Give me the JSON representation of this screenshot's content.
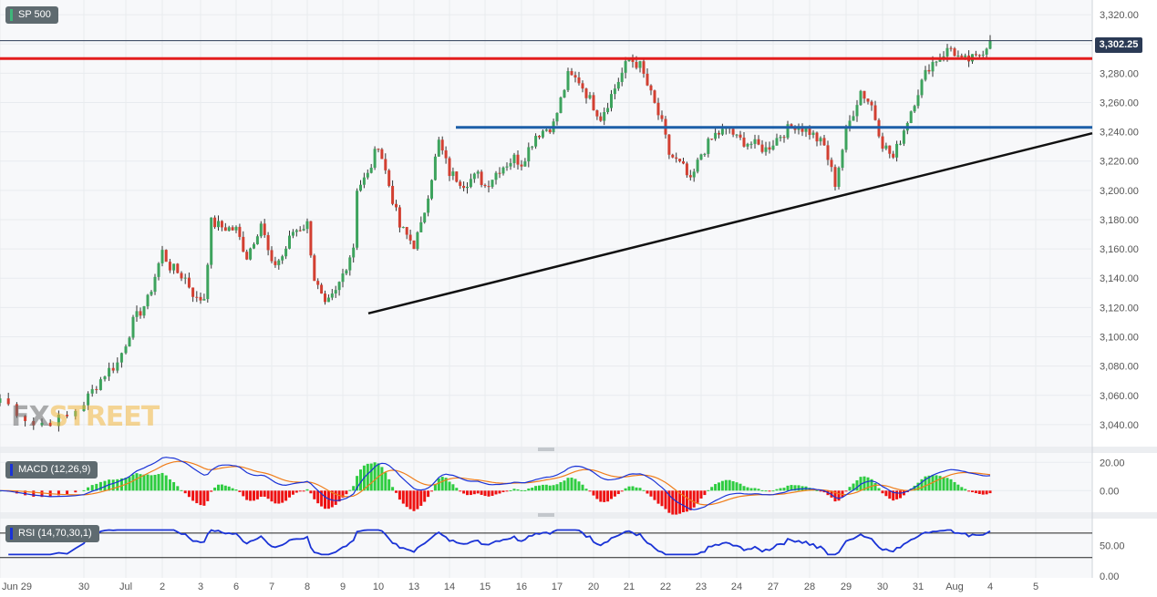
{
  "header": {
    "symbol": "SP 500",
    "macd_label": "MACD (12,26,9)",
    "rsi_label": "RSI (14,70,30,1)",
    "last_price_label": "3,302.25",
    "watermark_fx": "FX",
    "watermark_rest": "STREET"
  },
  "colors": {
    "up": "#3da35d",
    "down": "#d23f31",
    "resistance_red": "#e31d1d",
    "resistance_blue": "#1d5fa8",
    "trendline": "#111111",
    "macd_line": "#1a33d6",
    "signal_line": "#f07d1a",
    "hist_pos": "#2ecc40",
    "hist_neg": "#ee1111",
    "rsi_line": "#1a33d6",
    "grid": "#e8ebef",
    "axis_text": "#555555"
  },
  "chart_data": [
    {
      "type": "candlestick",
      "title": "SP 500",
      "y_ticks": [
        "3,040.00",
        "3,060.00",
        "3,080.00",
        "3,100.00",
        "3,120.00",
        "3,140.00",
        "3,160.00",
        "3,180.00",
        "3,200.00",
        "3,220.00",
        "3,240.00",
        "3,260.00",
        "3,280.00",
        "3,300.00",
        "3,320.00"
      ],
      "ylim": [
        3025,
        3330
      ],
      "x_ticks": [
        "Jun 29",
        "30",
        "Jul",
        "2",
        "3",
        "6",
        "7",
        "8",
        "9",
        "10",
        "13",
        "14",
        "15",
        "16",
        "17",
        "20",
        "21",
        "22",
        "23",
        "24",
        "27",
        "28",
        "29",
        "30",
        "31",
        "Aug",
        "4",
        "5"
      ],
      "last_price": 3302.25,
      "horizontal_levels": [
        {
          "name": "resistance",
          "value": 3290,
          "color_key": "resistance_red"
        },
        {
          "name": "support",
          "value": 3243,
          "color_key": "resistance_blue"
        }
      ],
      "trendline": {
        "from": {
          "x": 10.0,
          "y": 3116
        },
        "to": {
          "x": 30.0,
          "y": 3239
        }
      },
      "anchors": [
        [
          0,
          3058
        ],
        [
          0.4,
          3040
        ],
        [
          0.8,
          3045
        ],
        [
          1.0,
          3055
        ],
        [
          1.5,
          3075
        ],
        [
          1.8,
          3082
        ],
        [
          2.2,
          3110
        ],
        [
          2.6,
          3125
        ],
        [
          3.0,
          3158
        ],
        [
          3.2,
          3148
        ],
        [
          3.6,
          3140
        ],
        [
          3.9,
          3125
        ],
        [
          4.1,
          3127
        ],
        [
          4.3,
          3178
        ],
        [
          4.6,
          3175
        ],
        [
          5.0,
          3173
        ],
        [
          5.3,
          3155
        ],
        [
          5.7,
          3178
        ],
        [
          6.0,
          3148
        ],
        [
          6.3,
          3155
        ],
        [
          6.6,
          3172
        ],
        [
          7.0,
          3177
        ],
        [
          7.2,
          3140
        ],
        [
          7.5,
          3120
        ],
        [
          7.8,
          3130
        ],
        [
          8.3,
          3162
        ],
        [
          8.4,
          3202
        ],
        [
          8.7,
          3210
        ],
        [
          9.0,
          3232
        ],
        [
          9.6,
          3175
        ],
        [
          10.0,
          3163
        ],
        [
          10.2,
          3175
        ],
        [
          10.7,
          3233
        ],
        [
          11.0,
          3212
        ],
        [
          11.4,
          3205
        ],
        [
          11.8,
          3210
        ],
        [
          12.0,
          3203
        ],
        [
          12.4,
          3215
        ],
        [
          12.8,
          3222
        ],
        [
          13.0,
          3219
        ],
        [
          13.4,
          3238
        ],
        [
          13.9,
          3245
        ],
        [
          14.3,
          3278
        ],
        [
          14.6,
          3275
        ],
        [
          14.9,
          3262
        ],
        [
          15.2,
          3250
        ],
        [
          15.6,
          3270
        ],
        [
          16.0,
          3290
        ],
        [
          16.3,
          3285
        ],
        [
          16.6,
          3265
        ],
        [
          16.9,
          3245
        ],
        [
          17.1,
          3225
        ],
        [
          17.5,
          3215
        ],
        [
          17.7,
          3205
        ],
        [
          18.0,
          3225
        ],
        [
          18.4,
          3238
        ],
        [
          18.8,
          3242
        ],
        [
          19.0,
          3235
        ],
        [
          19.4,
          3232
        ],
        [
          19.8,
          3228
        ],
        [
          20.2,
          3238
        ],
        [
          20.6,
          3245
        ],
        [
          21.0,
          3240
        ],
        [
          21.4,
          3230
        ],
        [
          21.7,
          3205
        ],
        [
          22.0,
          3240
        ],
        [
          22.4,
          3268
        ],
        [
          22.7,
          3258
        ],
        [
          23.0,
          3232
        ],
        [
          23.3,
          3222
        ],
        [
          23.5,
          3235
        ],
        [
          24.0,
          3268
        ],
        [
          24.3,
          3285
        ],
        [
          24.6,
          3292
        ],
        [
          24.9,
          3297
        ],
        [
          25.2,
          3288
        ],
        [
          25.6,
          3290
        ],
        [
          26.0,
          3302
        ]
      ]
    },
    {
      "type": "macd",
      "title": "MACD (12,26,9)",
      "y_ticks": [
        "0.00",
        "20.00"
      ],
      "ylim": [
        -14,
        26
      ]
    },
    {
      "type": "rsi",
      "title": "RSI (14,70,30,1)",
      "y_ticks": [
        "0.00",
        "50.00"
      ],
      "ylim": [
        0,
        92
      ],
      "levels": [
        70,
        30
      ]
    }
  ]
}
